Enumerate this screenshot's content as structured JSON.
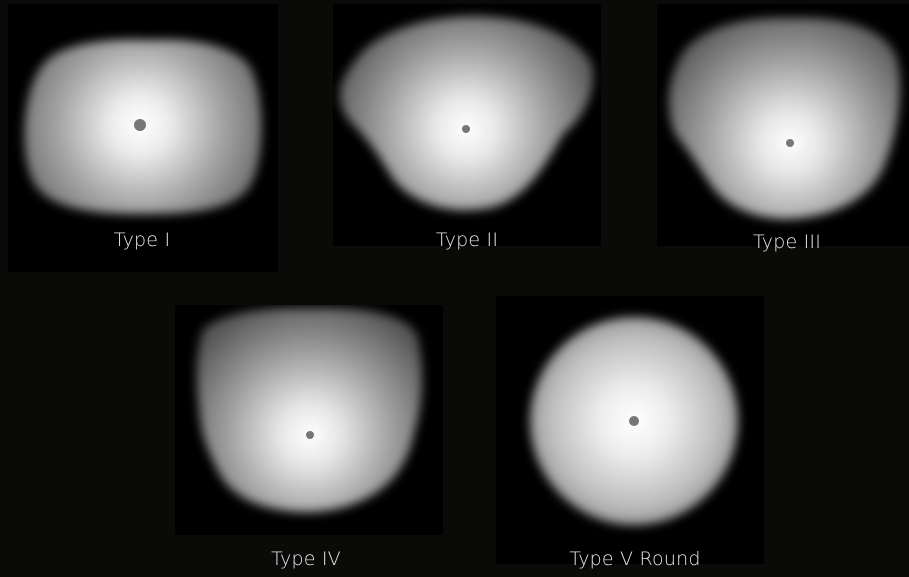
{
  "figure": {
    "panels": [
      {
        "id": "type-1",
        "label": "Type I"
      },
      {
        "id": "type-2",
        "label": "Type II"
      },
      {
        "id": "type-3",
        "label": "Type III"
      },
      {
        "id": "type-4",
        "label": "Type IV"
      },
      {
        "id": "type-5",
        "label": "Type V Round"
      }
    ]
  }
}
